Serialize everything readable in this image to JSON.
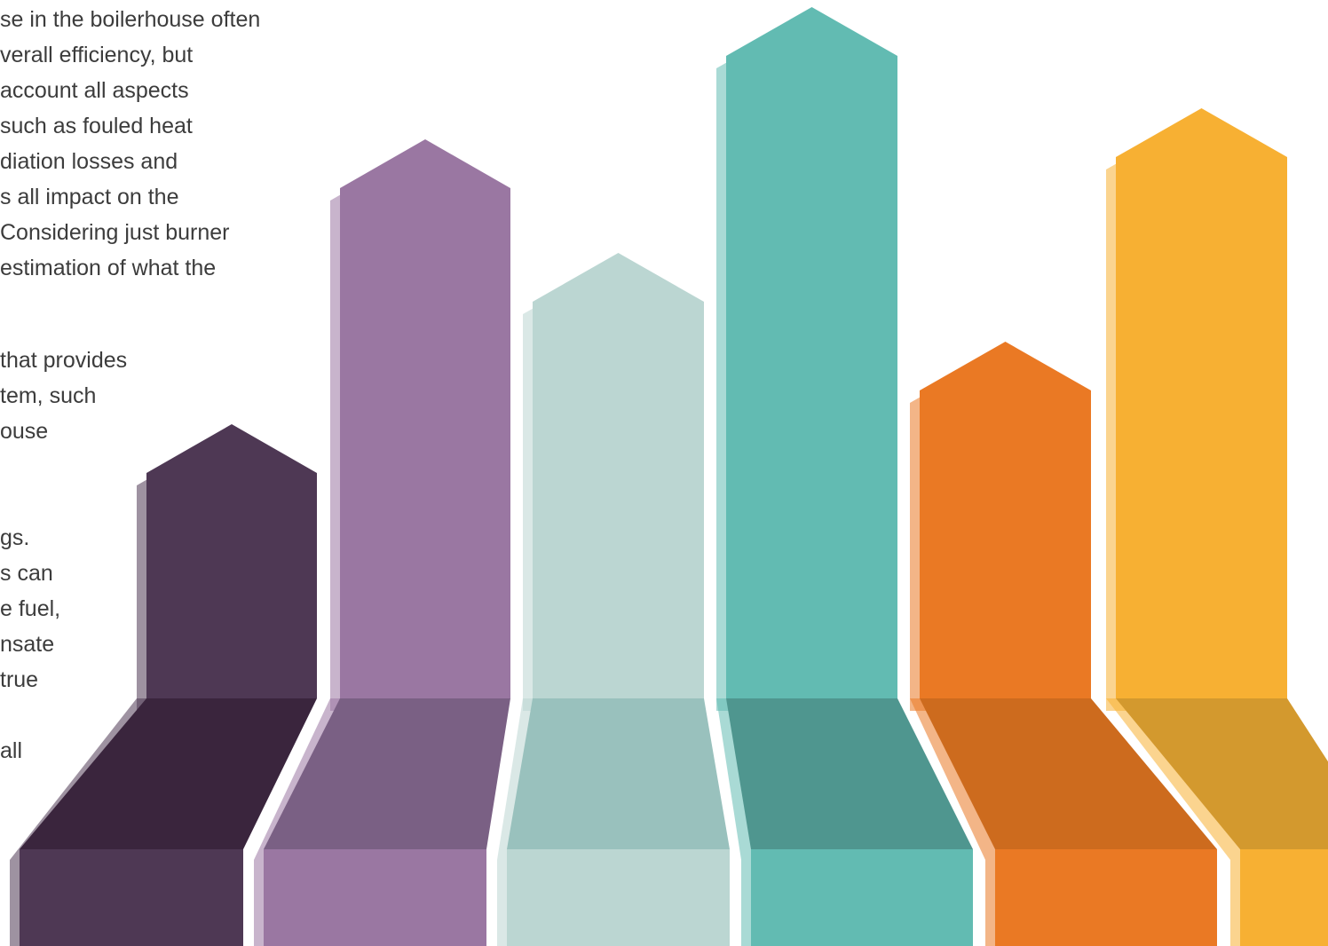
{
  "text_lines": [
    "se in the boilerhouse often",
    "verall efficiency, but",
    "account all aspects",
    "such as fouled heat",
    "diation losses and",
    "s all impact on the",
    "Considering just burner",
    "estimation of what the",
    "that provides",
    "tem, such",
    "ouse",
    "gs.",
    "s can",
    "e fuel,",
    "nsate",
    "true",
    "all"
  ]
}
